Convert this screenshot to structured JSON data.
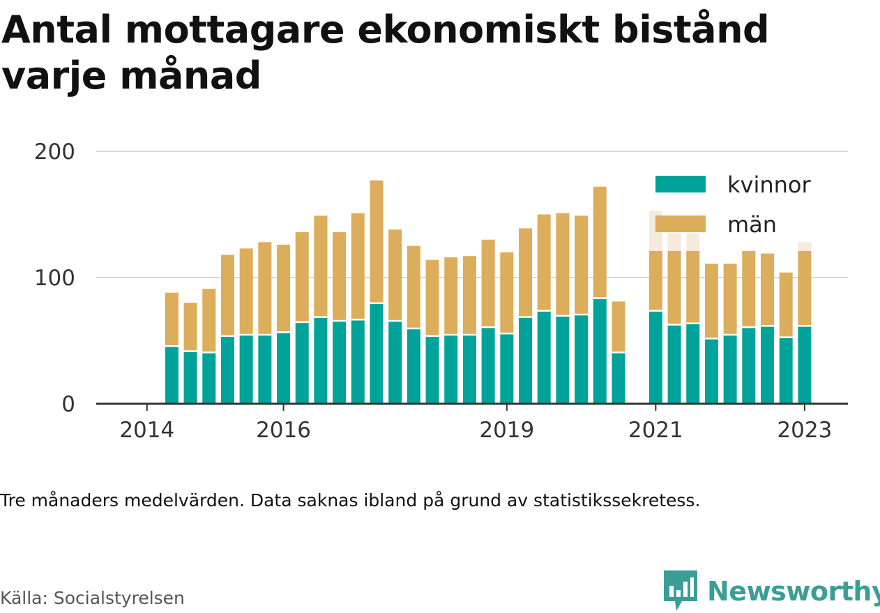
{
  "title": "Antal mottagare ekonomiskt bistånd varje månad",
  "note": "Tre månaders medelvärden. Data saknas ibland på grund av statistikssekretess.",
  "source": "Källa: Socialstyrelsen",
  "brand": "Newsworthy",
  "colors": {
    "kvinnor": "#00a39a",
    "man": "#dcad5a",
    "man_faded": "#f6ebdb",
    "grid": "#d9d9d9",
    "axis": "#333333",
    "brand": "#3a9e96"
  },
  "chart_data": {
    "type": "bar",
    "stacked": true,
    "ylim": [
      0,
      200
    ],
    "yticks": [
      0,
      100,
      200
    ],
    "xticks": [
      "2014",
      "2016",
      "2019",
      "2021",
      "2023"
    ],
    "grid": true,
    "legend_position": "top-right",
    "series": [
      {
        "name": "kvinnor",
        "color": "#00a39a"
      },
      {
        "name": "män",
        "color": "#dcad5a"
      }
    ],
    "points": [
      {
        "x": "2014-07",
        "kvinnor": 45,
        "man": 43
      },
      {
        "x": "2014-10",
        "kvinnor": 41,
        "man": 39
      },
      {
        "x": "2015-01",
        "kvinnor": 40,
        "man": 51
      },
      {
        "x": "2015-04",
        "kvinnor": 53,
        "man": 65
      },
      {
        "x": "2015-07",
        "kvinnor": 54,
        "man": 69
      },
      {
        "x": "2015-10",
        "kvinnor": 54,
        "man": 74
      },
      {
        "x": "2016-01",
        "kvinnor": 56,
        "man": 70
      },
      {
        "x": "2016-04",
        "kvinnor": 64,
        "man": 72
      },
      {
        "x": "2016-07",
        "kvinnor": 68,
        "man": 81
      },
      {
        "x": "2016-10",
        "kvinnor": 65,
        "man": 71
      },
      {
        "x": "2017-01",
        "kvinnor": 66,
        "man": 85
      },
      {
        "x": "2017-04",
        "kvinnor": 79,
        "man": 98
      },
      {
        "x": "2017-07",
        "kvinnor": 65,
        "man": 73
      },
      {
        "x": "2017-10",
        "kvinnor": 59,
        "man": 66
      },
      {
        "x": "2018-01",
        "kvinnor": 53,
        "man": 61
      },
      {
        "x": "2018-04",
        "kvinnor": 54,
        "man": 62
      },
      {
        "x": "2018-07",
        "kvinnor": 54,
        "man": 63
      },
      {
        "x": "2018-10",
        "kvinnor": 60,
        "man": 70
      },
      {
        "x": "2019-01",
        "kvinnor": 55,
        "man": 65
      },
      {
        "x": "2019-04",
        "kvinnor": 68,
        "man": 71
      },
      {
        "x": "2019-07",
        "kvinnor": 73,
        "man": 77
      },
      {
        "x": "2019-10",
        "kvinnor": 69,
        "man": 82
      },
      {
        "x": "2020-01",
        "kvinnor": 70,
        "man": 79
      },
      {
        "x": "2020-04",
        "kvinnor": 83,
        "man": 89
      },
      {
        "x": "2020-07",
        "kvinnor": 40,
        "man": 41
      },
      {
        "x": "2020-10",
        "kvinnor": null,
        "man": null
      },
      {
        "x": "2021-01",
        "kvinnor": 73,
        "man": 48,
        "faded_top": 153
      },
      {
        "x": "2021-04",
        "kvinnor": 62,
        "man": 59,
        "faded_top": 135
      },
      {
        "x": "2021-07",
        "kvinnor": 63,
        "man": 58,
        "faded_top": 135
      },
      {
        "x": "2021-10",
        "kvinnor": 51,
        "man": 60
      },
      {
        "x": "2022-01",
        "kvinnor": 54,
        "man": 57
      },
      {
        "x": "2022-04",
        "kvinnor": 60,
        "man": 61
      },
      {
        "x": "2022-07",
        "kvinnor": 61,
        "man": 58
      },
      {
        "x": "2022-10",
        "kvinnor": 52,
        "man": 52
      },
      {
        "x": "2023-01",
        "kvinnor": 61,
        "man": 60,
        "faded_top": 128
      }
    ]
  }
}
